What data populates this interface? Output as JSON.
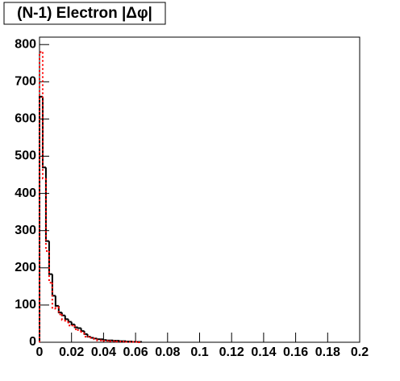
{
  "chart_data": {
    "type": "histogram",
    "title": "(N-1) Electron |Δφ|",
    "bins": [
      0,
      0.002,
      0.004,
      0.006,
      0.008,
      0.01,
      0.012,
      0.014,
      0.016,
      0.018,
      0.02,
      0.022,
      0.024,
      0.026,
      0.028,
      0.03,
      0.032,
      0.034,
      0.036,
      0.038,
      0.04,
      0.042,
      0.044,
      0.046,
      0.048,
      0.05,
      0.052,
      0.054,
      0.056,
      0.058,
      0.06,
      0.062,
      0.064
    ],
    "series": [
      {
        "color": "#000000",
        "style": "solid",
        "values": [
          660,
          470,
          272,
          183,
          125,
          98,
          80,
          72,
          62,
          55,
          48,
          40,
          38,
          30,
          22,
          15,
          12,
          10,
          8,
          8,
          6,
          5,
          5,
          4,
          4,
          3,
          3,
          2,
          2,
          1,
          1,
          1
        ]
      },
      {
        "color": "#ff0000",
        "style": "dotted",
        "values": [
          780,
          440,
          245,
          160,
          90,
          95,
          75,
          60,
          55,
          45,
          45,
          35,
          30,
          25,
          15,
          15,
          12,
          8,
          5,
          5,
          4,
          4,
          3,
          3,
          2,
          2,
          2,
          1,
          1,
          1,
          1,
          0
        ]
      }
    ],
    "xlim": [
      0,
      0.2
    ],
    "xticks": [
      0,
      0.02,
      0.04,
      0.06,
      0.08,
      0.1,
      0.12,
      0.14,
      0.16,
      0.18,
      0.2
    ],
    "ylim": [
      0,
      820
    ],
    "yticks": [
      0,
      100,
      200,
      300,
      400,
      500,
      600,
      700,
      800
    ]
  }
}
